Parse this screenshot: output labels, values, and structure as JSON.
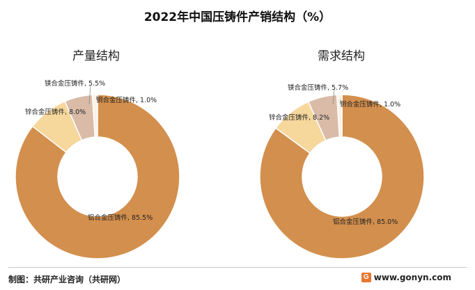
{
  "title": "2022年中国压铸件产销结构（%）",
  "chart_data": [
    {
      "type": "pie",
      "donut": true,
      "title": "产量结构",
      "categories": [
        "铝合金压铸件",
        "锌合金压铸件",
        "镁合金压铸件",
        "铜合金压铸件"
      ],
      "values": [
        85.5,
        8.0,
        5.5,
        1.0
      ],
      "labels": [
        "铝合金压铸件, 85.5%",
        "锌合金压铸件, 8.0%",
        "镁合金压铸件, 5.5%",
        "铜合金压铸件, 1.0%"
      ],
      "colors": [
        "#d38f4d",
        "#f6d79c",
        "#d9bba7",
        "#fbf2e4"
      ]
    },
    {
      "type": "pie",
      "donut": true,
      "title": "需求结构",
      "categories": [
        "铝合金压铸件",
        "锌合金压铸件",
        "镁合金压铸件",
        "铜合金压铸件"
      ],
      "values": [
        85.0,
        8.2,
        5.7,
        1.0
      ],
      "labels": [
        "铝合金压铸件, 85.0%",
        "锌合金压铸件, 8.2%",
        "镁合金压铸件, 5.7%",
        "铜合金压铸件, 1.0%"
      ],
      "colors": [
        "#d38f4d",
        "#f6d79c",
        "#d9bba7",
        "#fbf2e4"
      ]
    }
  ],
  "footer": {
    "source": "制图：共研产业咨询（共研网）",
    "logo_letter": "G",
    "url": "www.gonyn.com"
  }
}
